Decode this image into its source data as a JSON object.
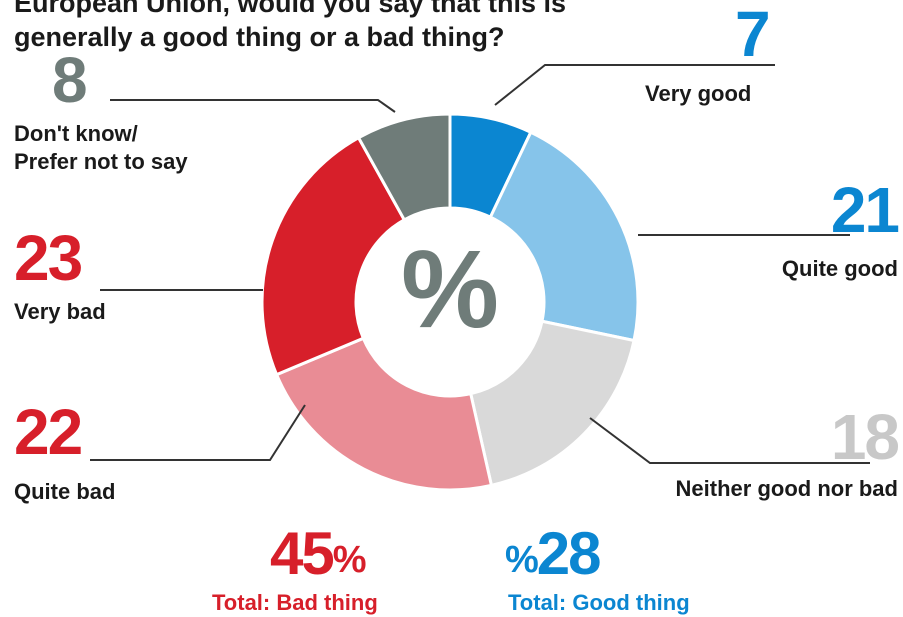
{
  "title": {
    "line1": "European Union, would you say that this is",
    "line2": "generally a good thing or a bad thing?"
  },
  "chart_data": {
    "type": "pie",
    "center_symbol": "%",
    "slices": [
      {
        "label": "Very good",
        "value": 7,
        "color": "#0b86d1"
      },
      {
        "label": "Quite good",
        "value": 21,
        "color": "#86c4ea"
      },
      {
        "label": "Neither good nor bad",
        "value": 18,
        "color": "#d9d9d9"
      },
      {
        "label": "Quite bad",
        "value": 22,
        "color": "#e98c95"
      },
      {
        "label": "Very bad",
        "value": 23,
        "color": "#d71f2a"
      },
      {
        "label": "Don't know/ Prefer not to say",
        "value": 8,
        "color": "#6f7c79"
      }
    ],
    "totals": [
      {
        "value": "45",
        "symbol": "%",
        "label": "Total: Bad thing",
        "color": "#d71f2a"
      },
      {
        "value": "28",
        "symbol": "%",
        "label": "Total: Good thing",
        "color": "#0b86d1"
      }
    ]
  },
  "labels": {
    "very_good": {
      "value": "7",
      "label": "Very good"
    },
    "quite_good": {
      "value": "21",
      "label": "Quite good"
    },
    "neither": {
      "value": "18",
      "label": "Neither good nor bad"
    },
    "quite_bad": {
      "value": "22",
      "label": "Quite bad"
    },
    "very_bad": {
      "value": "23",
      "label": "Very bad"
    },
    "dont_know": {
      "value": "8",
      "label_line1": "Don't know/",
      "label_line2": "Prefer not to say"
    }
  }
}
